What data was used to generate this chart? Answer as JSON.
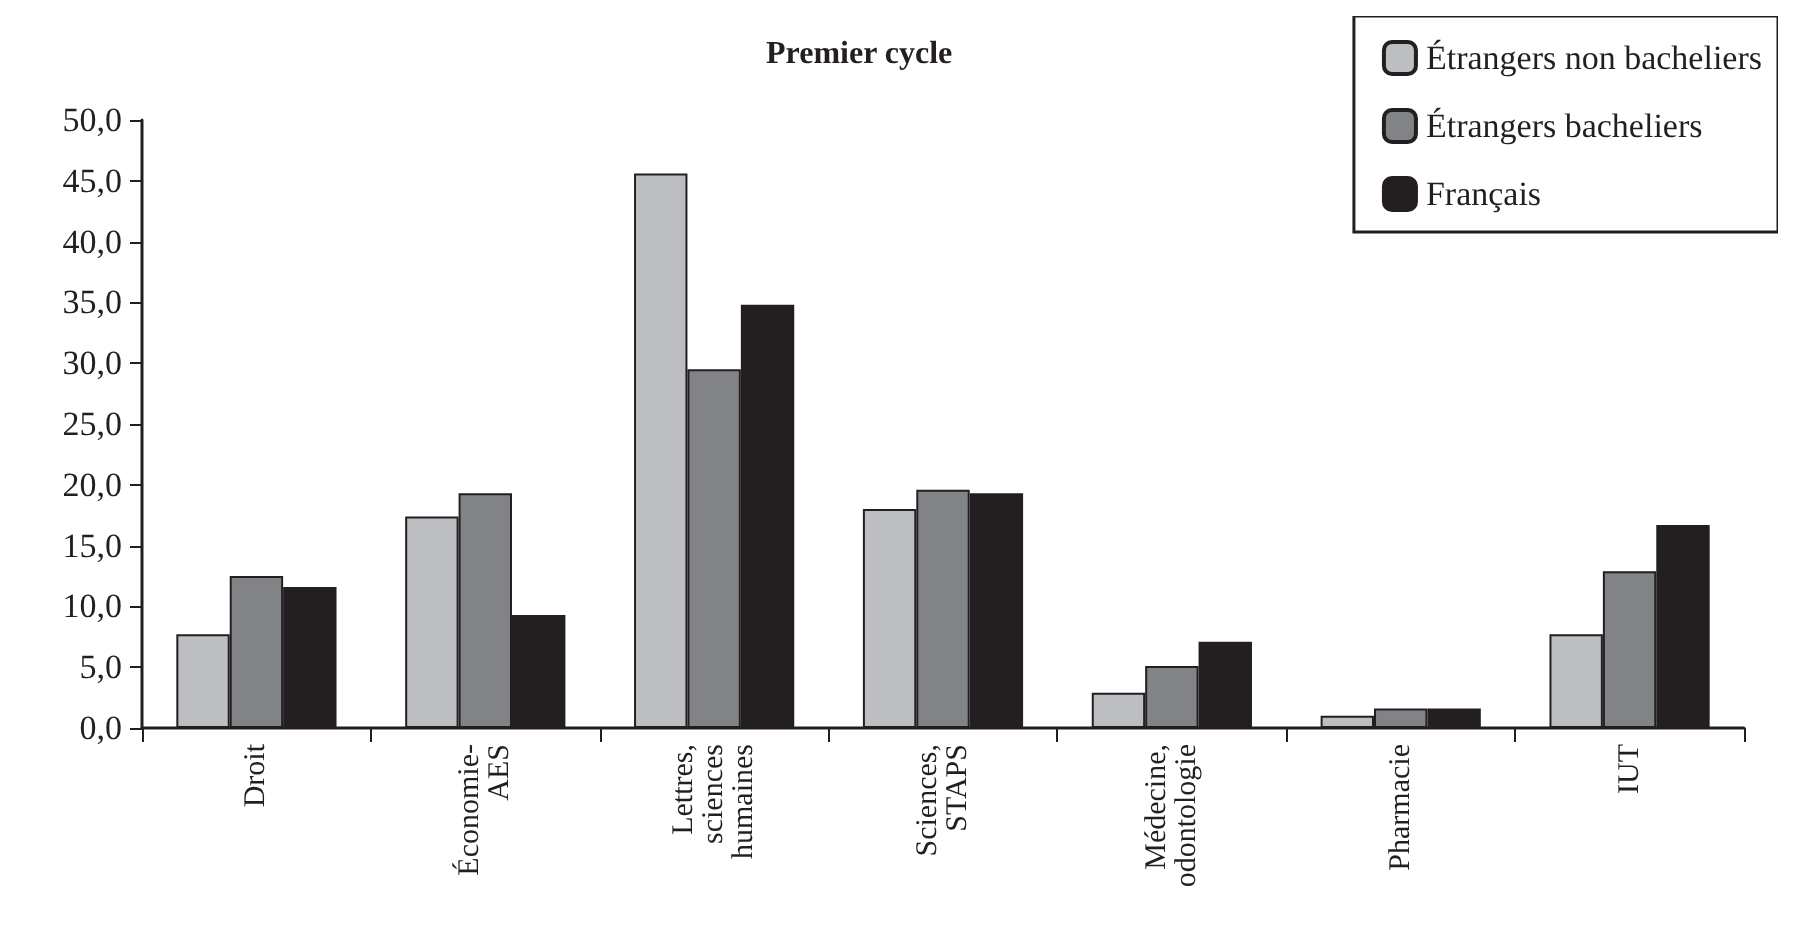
{
  "chart_data": {
    "type": "bar",
    "title": "Premier cycle",
    "categories": [
      "Droit",
      "Économie-\nAES",
      "Lettres,\nsciences\nhumaines",
      "Sciences,\nSTAPS",
      "Médecine,\nodontologie",
      "Pharmacie",
      "IUT"
    ],
    "series": [
      {
        "name": "Étrangers non bacheliers",
        "color": "#bdbec2",
        "values": [
          7.7,
          17.4,
          45.6,
          18.0,
          2.9,
          1.0,
          7.7
        ]
      },
      {
        "name": "Étrangers bacheliers",
        "color": "#828387",
        "values": [
          12.5,
          19.3,
          29.5,
          19.6,
          5.1,
          1.6,
          12.9
        ]
      },
      {
        "name": "Français",
        "color": "#231f20",
        "values": [
          11.6,
          9.3,
          34.8,
          19.3,
          7.1,
          1.6,
          16.7
        ]
      }
    ],
    "ylim": [
      0,
      50
    ],
    "yticks": [
      {
        "value": 0,
        "label": "0,0"
      },
      {
        "value": 5,
        "label": "5,0"
      },
      {
        "value": 10,
        "label": "10,0"
      },
      {
        "value": 15,
        "label": "15,0"
      },
      {
        "value": 20,
        "label": "20,0"
      },
      {
        "value": 25,
        "label": "25,0"
      },
      {
        "value": 30,
        "label": "30,0"
      },
      {
        "value": 35,
        "label": "35,0"
      },
      {
        "value": 40,
        "label": "40,0"
      },
      {
        "value": 45,
        "label": "45,0"
      },
      {
        "value": 50,
        "label": "50,0"
      }
    ],
    "grid": false,
    "legend": "top right"
  }
}
